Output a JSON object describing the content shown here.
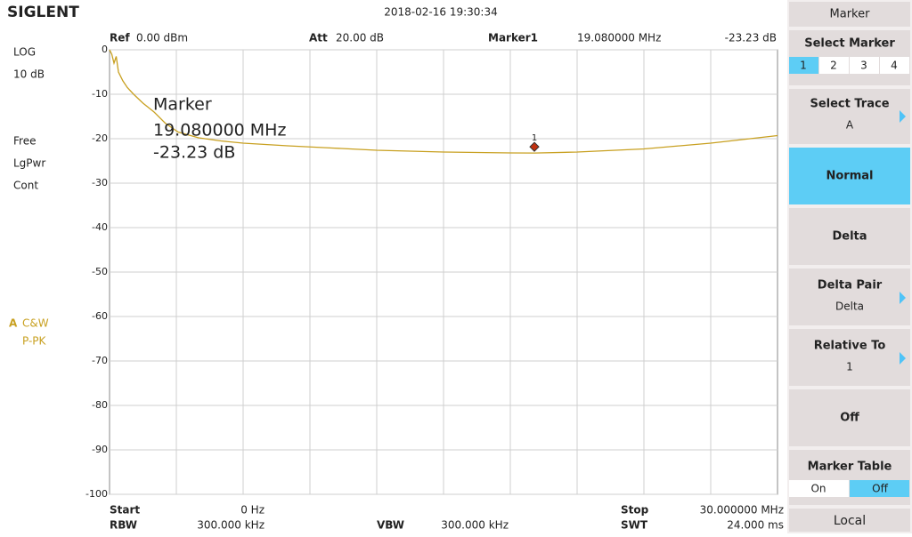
{
  "header": {
    "brand": "SIGLENT",
    "datetime": "2018-02-16   19:30:34"
  },
  "left_panel": {
    "scale_type": "LOG",
    "scale_div": "10 dB",
    "trigger": "Free",
    "detector_mode": "LgPwr",
    "sweep": "Cont",
    "trace_id": "A",
    "trace_mode": "C&W",
    "trace_detector": "P-PK"
  },
  "info_bar": {
    "ref_label": "Ref",
    "ref_value": "0.00 dBm",
    "att_label": "Att",
    "att_value": "20.00 dB",
    "marker_label": "Marker1",
    "marker_freq": "19.080000 MHz",
    "marker_level": "-23.23 dB"
  },
  "marker_box": {
    "title": "Marker",
    "freq": "19.080000 MHz",
    "level": "-23.23 dB"
  },
  "footer": {
    "start_label": "Start",
    "start_value": "0 Hz",
    "stop_label": "Stop",
    "stop_value": "30.000000 MHz",
    "rbw_label": "RBW",
    "rbw_value": "300.000 kHz",
    "vbw_label": "VBW",
    "vbw_value": "300.000 kHz",
    "swt_label": "SWT",
    "swt_value": "24.000 ms"
  },
  "menu": {
    "title": "Marker",
    "select_marker": {
      "label": "Select Marker",
      "options": [
        "1",
        "2",
        "3",
        "4"
      ]
    },
    "select_trace": {
      "label": "Select Trace",
      "value": "A"
    },
    "normal": "Normal",
    "delta": "Delta",
    "delta_pair": {
      "label": "Delta Pair",
      "value": "Delta"
    },
    "relative_to": {
      "label": "Relative To",
      "value": "1"
    },
    "off": "Off",
    "marker_table": {
      "label": "Marker Table",
      "on": "On",
      "off": "Off"
    },
    "local": "Local"
  },
  "chart_data": {
    "type": "line",
    "xlim": [
      0,
      30
    ],
    "ylim": [
      -100,
      0
    ],
    "yticks": [
      0,
      -10,
      -20,
      -30,
      -40,
      -50,
      -60,
      -70,
      -80,
      -90,
      -100
    ],
    "grid": true,
    "x": [
      0,
      0.1,
      0.2,
      0.3,
      0.4,
      0.6,
      0.8,
      1.08,
      1.5,
      2,
      2.5,
      3.08,
      4,
      5,
      6,
      8,
      10,
      12,
      15,
      18,
      19.08,
      21,
      24,
      27,
      30
    ],
    "series": [
      {
        "color": "#c8a020",
        "values": [
          0,
          -1,
          -3,
          -1.5,
          -5,
          -7,
          -8.5,
          -10,
          -12,
          -14,
          -16.5,
          -18.5,
          -19.8,
          -20.5,
          -21,
          -21.6,
          -22.1,
          -22.6,
          -23,
          -23.2,
          -23.23,
          -23,
          -22.3,
          -21,
          -19.3
        ]
      }
    ],
    "marker": {
      "label": "1",
      "x": 19.08,
      "y": -23.23,
      "color": "#c03010"
    }
  }
}
